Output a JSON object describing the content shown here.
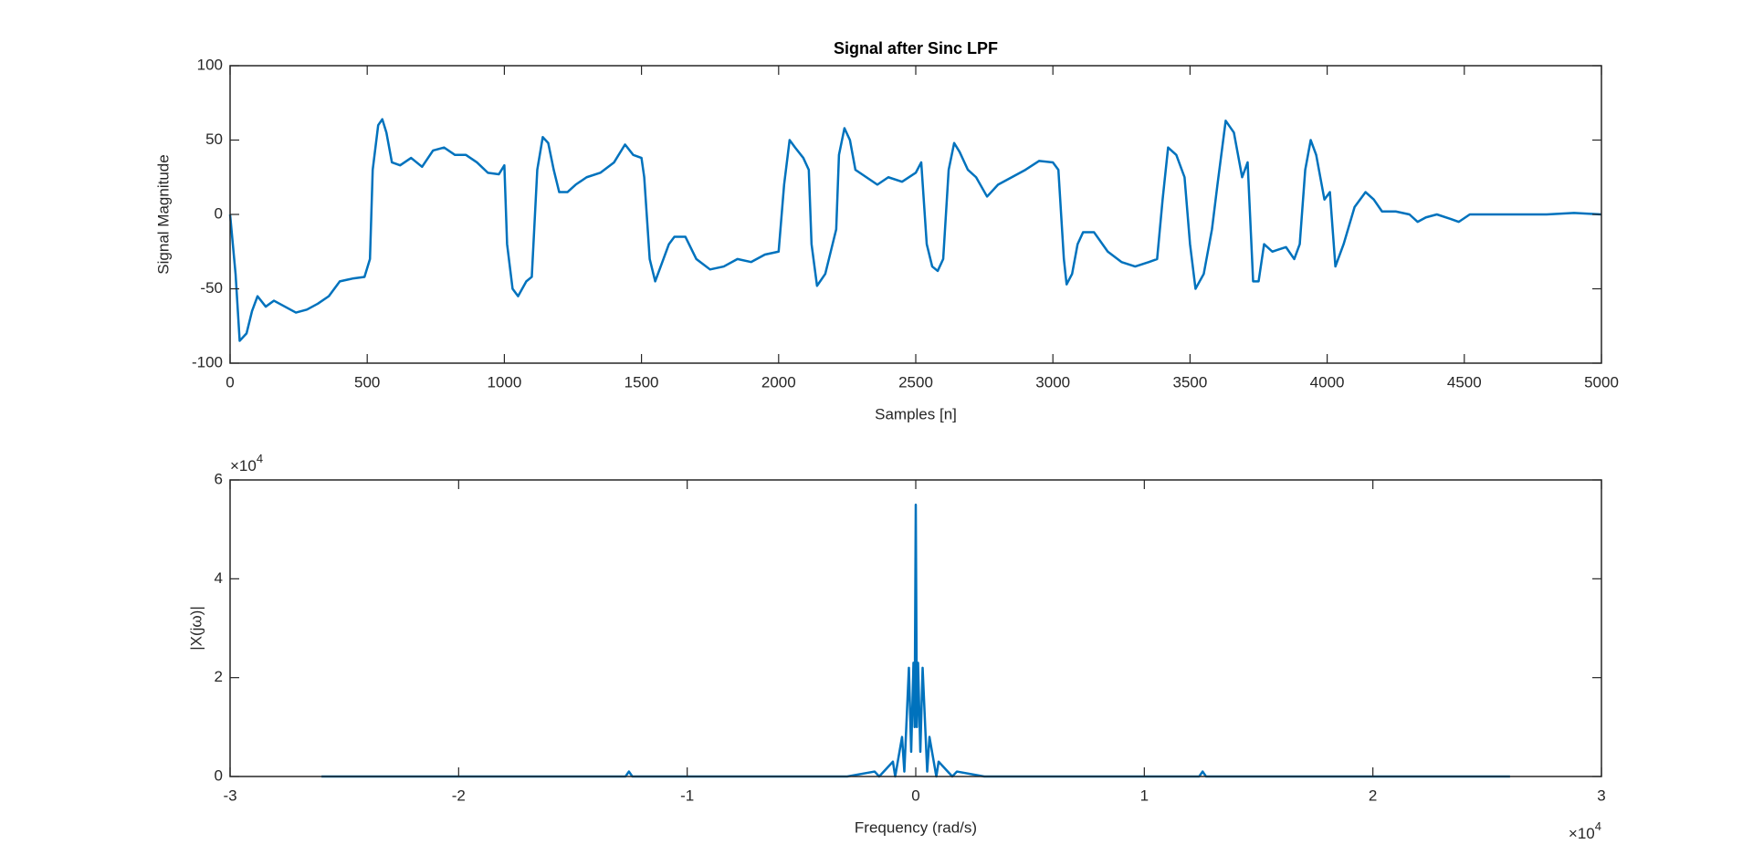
{
  "chart_data": [
    {
      "type": "line",
      "title": "Signal after Sinc LPF",
      "xlabel": "Samples [n]",
      "ylabel": "Signal Magnitude",
      "color": "#0072bd",
      "x": [
        0,
        20,
        35,
        60,
        80,
        100,
        130,
        160,
        200,
        240,
        280,
        320,
        360,
        400,
        450,
        490,
        510,
        520,
        540,
        555,
        570,
        590,
        620,
        660,
        700,
        740,
        780,
        820,
        860,
        900,
        940,
        980,
        1000,
        1010,
        1030,
        1050,
        1080,
        1100,
        1120,
        1140,
        1160,
        1180,
        1200,
        1230,
        1260,
        1300,
        1350,
        1400,
        1440,
        1470,
        1500,
        1510,
        1530,
        1550,
        1570,
        1600,
        1620,
        1660,
        1700,
        1750,
        1800,
        1850,
        1900,
        1950,
        2000,
        2020,
        2040,
        2060,
        2090,
        2110,
        2120,
        2140,
        2170,
        2190,
        2210,
        2220,
        2240,
        2260,
        2280,
        2320,
        2360,
        2400,
        2450,
        2500,
        2520,
        2540,
        2560,
        2580,
        2600,
        2620,
        2640,
        2660,
        2690,
        2720,
        2760,
        2800,
        2850,
        2900,
        2950,
        3000,
        3020,
        3040,
        3050,
        3070,
        3090,
        3110,
        3150,
        3200,
        3250,
        3300,
        3350,
        3380,
        3400,
        3420,
        3450,
        3480,
        3500,
        3520,
        3550,
        3580,
        3600,
        3630,
        3660,
        3690,
        3710,
        3730,
        3750,
        3770,
        3800,
        3850,
        3880,
        3900,
        3920,
        3940,
        3960,
        3990,
        4010,
        4030,
        4060,
        4100,
        4140,
        4170,
        4200,
        4250,
        4300,
        4330,
        4360,
        4400,
        4450,
        4480,
        4520,
        4600,
        4700,
        4800,
        4900,
        5000
      ],
      "values": [
        0,
        -40,
        -85,
        -80,
        -65,
        -55,
        -62,
        -58,
        -62,
        -66,
        -64,
        -60,
        -55,
        -45,
        -43,
        -42,
        -30,
        30,
        60,
        64,
        55,
        35,
        33,
        38,
        32,
        43,
        45,
        40,
        40,
        35,
        28,
        27,
        33,
        -20,
        -50,
        -55,
        -45,
        -42,
        30,
        52,
        48,
        30,
        15,
        15,
        20,
        25,
        28,
        35,
        47,
        40,
        38,
        25,
        -30,
        -45,
        -35,
        -20,
        -15,
        -15,
        -30,
        -37,
        -35,
        -30,
        -32,
        -27,
        -25,
        20,
        50,
        45,
        38,
        30,
        -20,
        -48,
        -40,
        -25,
        -10,
        40,
        58,
        50,
        30,
        25,
        20,
        25,
        22,
        28,
        35,
        -20,
        -35,
        -38,
        -30,
        30,
        48,
        42,
        30,
        25,
        12,
        20,
        25,
        30,
        36,
        35,
        30,
        -30,
        -47,
        -40,
        -20,
        -12,
        -12,
        -25,
        -32,
        -35,
        -32,
        -30,
        10,
        45,
        40,
        25,
        -20,
        -50,
        -40,
        -10,
        20,
        63,
        55,
        25,
        35,
        -45,
        -45,
        -20,
        -25,
        -22,
        -30,
        -20,
        30,
        50,
        40,
        10,
        15,
        -35,
        -20,
        5,
        15,
        10,
        2,
        2,
        0,
        -5,
        -2,
        0,
        -3,
        -5,
        0,
        0,
        0,
        0,
        1,
        0
      ],
      "xlim": [
        0,
        5000
      ],
      "xticks": [
        0,
        500,
        1000,
        1500,
        2000,
        2500,
        3000,
        3500,
        4000,
        4500,
        5000
      ],
      "ylim": [
        -100,
        100
      ],
      "yticks": [
        -100,
        -50,
        0,
        50,
        100
      ]
    },
    {
      "type": "line",
      "xlabel": "Frequency (rad/s)",
      "ylabel": "|X(jω)|",
      "color": "#0072bd",
      "x": [
        -2.6,
        -1.27,
        -1.255,
        -1.24,
        -0.3,
        -0.18,
        -0.16,
        -0.1,
        -0.09,
        -0.06,
        -0.05,
        -0.03,
        -0.02,
        -0.01,
        -0.005,
        0,
        0.005,
        0.01,
        0.02,
        0.03,
        0.05,
        0.06,
        0.09,
        0.1,
        0.16,
        0.18,
        0.3,
        1.24,
        1.255,
        1.27,
        2.6
      ],
      "values": [
        0,
        0,
        0.1,
        0,
        0,
        0.1,
        0,
        0.3,
        0,
        0.8,
        0.1,
        2.2,
        0.5,
        2.3,
        1,
        5.5,
        1,
        2.3,
        0.5,
        2.2,
        0.1,
        0.8,
        0,
        0.3,
        0,
        0.1,
        0,
        0,
        0.1,
        0,
        0
      ],
      "xlim": [
        -3,
        3
      ],
      "xticks": [
        -3,
        -2,
        -1,
        0,
        1,
        2,
        3
      ],
      "ylim": [
        0,
        6
      ],
      "yticks": [
        0,
        2,
        4,
        6
      ],
      "x_exponent": {
        "base": "×10",
        "power": "4"
      },
      "y_exponent": {
        "base": "×10",
        "power": "4"
      }
    }
  ]
}
